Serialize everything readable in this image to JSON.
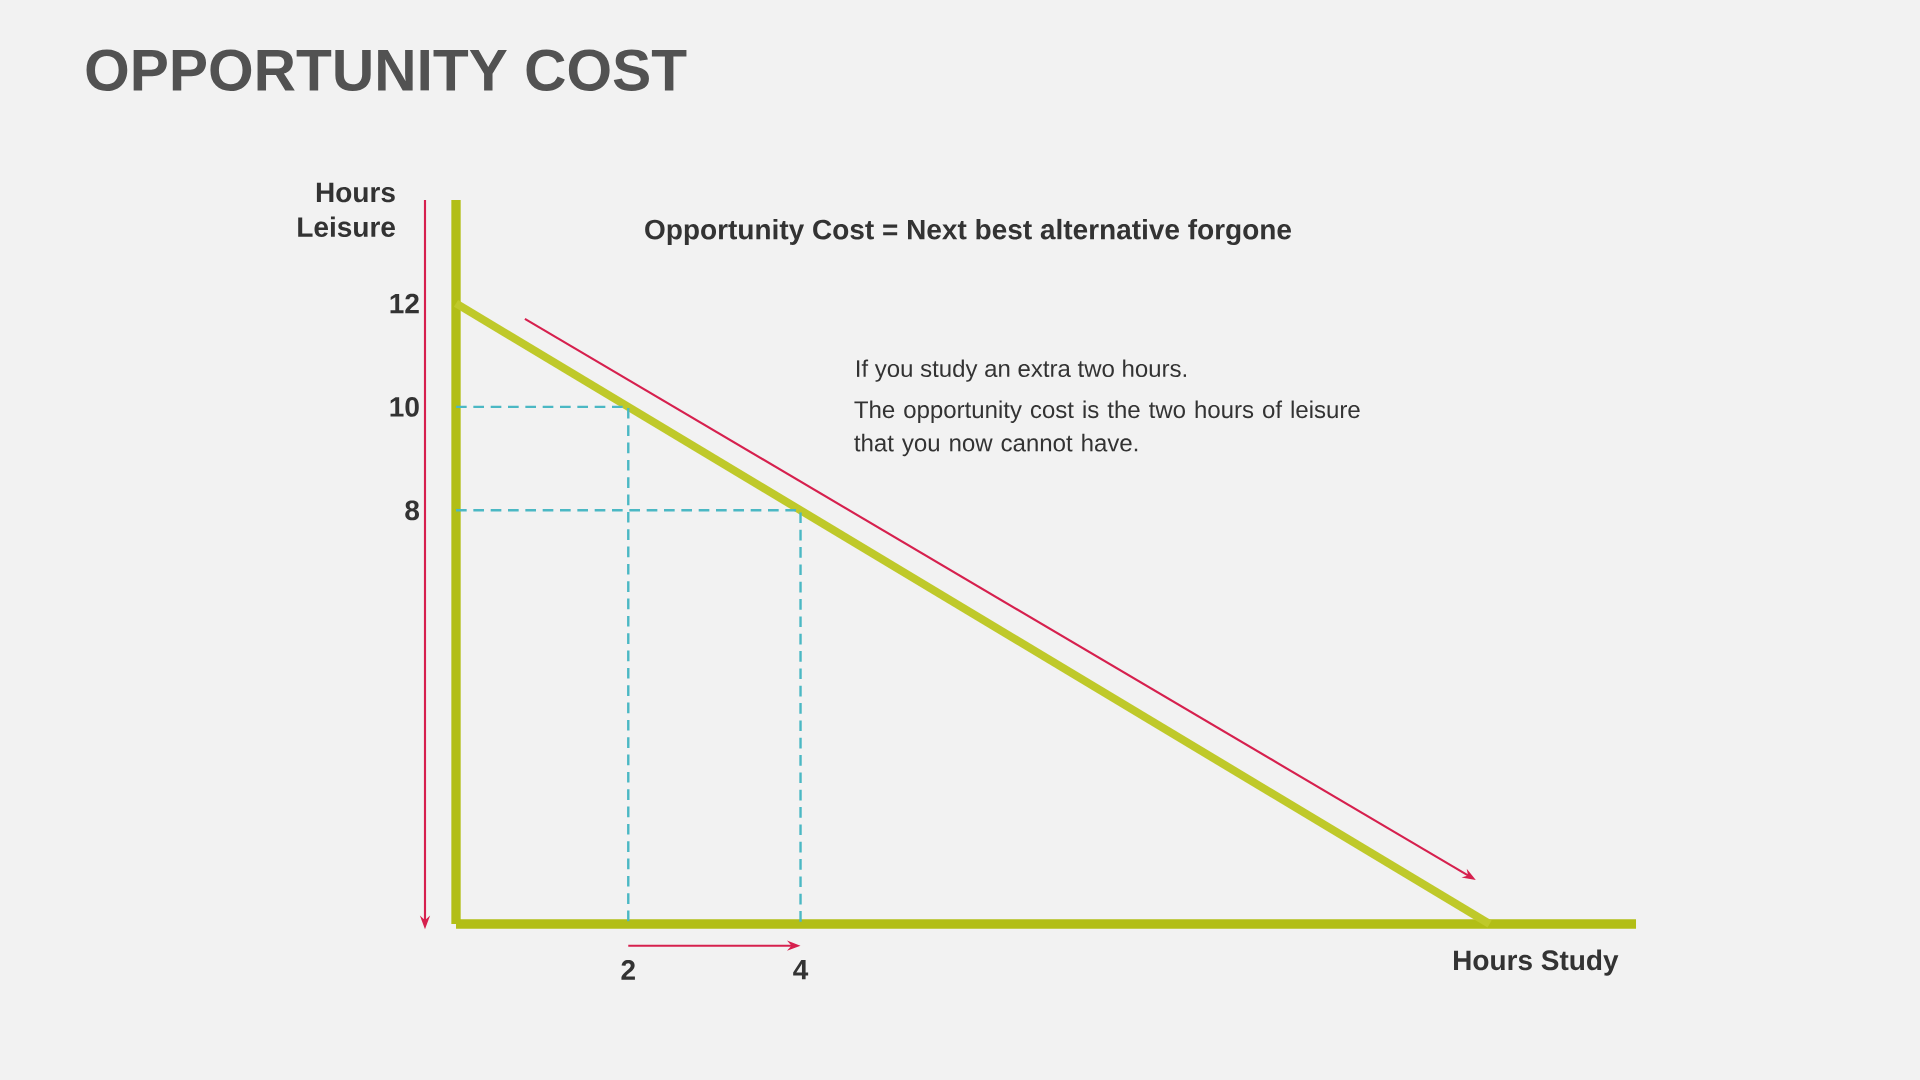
{
  "chart_data": {
    "type": "line",
    "title": "OPPORTUNITY COST",
    "xlabel": "Hours Study",
    "ylabel": "Hours Leisure",
    "annotations": [
      "Opportunity Cost = Next best alternative forgone",
      "If you study an extra two hours.",
      "The opportunity cost is the two hours of leisure that you now cannot have."
    ],
    "xlim": [
      0,
      13.7
    ],
    "ylim": [
      0,
      14
    ],
    "xticks": [
      2,
      4
    ],
    "yticks": [
      8,
      10,
      12
    ],
    "grid": false,
    "series": [
      {
        "color": "#bfc92a",
        "x": [
          0,
          12
        ],
        "values": [
          12,
          0
        ],
        "line_style": "solid"
      },
      {
        "color": "#4bb8c4",
        "x": [
          0,
          2,
          2
        ],
        "values": [
          10,
          10,
          0
        ],
        "line_style": "dashed"
      },
      {
        "color": "#4bb8c4",
        "x": [
          0,
          4,
          4
        ],
        "values": [
          8,
          8,
          0
        ],
        "line_style": "dashed"
      }
    ]
  }
}
